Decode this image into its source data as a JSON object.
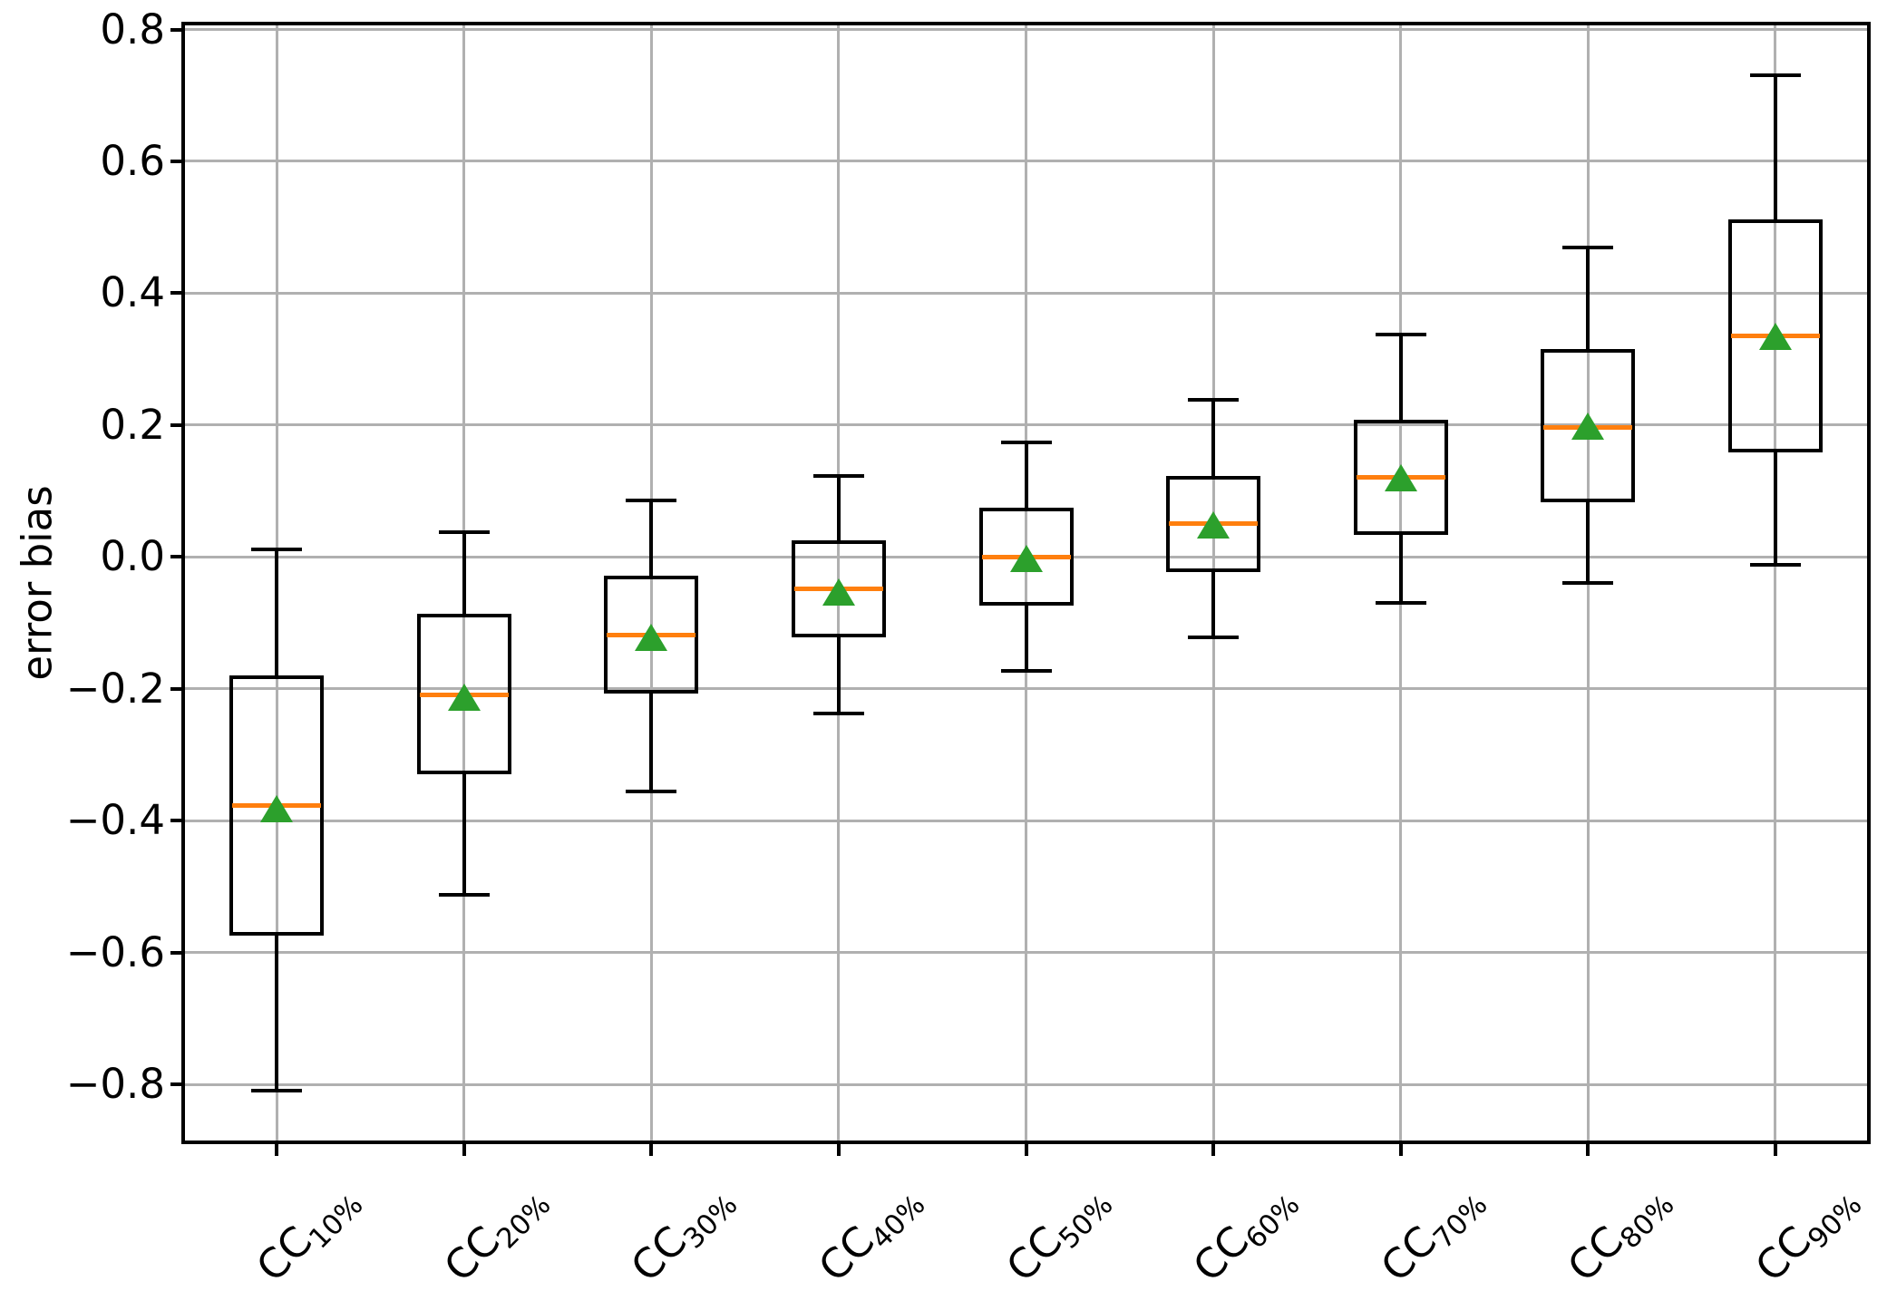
{
  "chart_data": {
    "type": "box",
    "title": "",
    "xlabel": "",
    "ylabel": "error bias",
    "grid": true,
    "legend": null,
    "outliers_shown": false,
    "mean_marker": "triangle-up",
    "categories": [
      "CC10%",
      "CC20%",
      "CC30%",
      "CC40%",
      "CC50%",
      "CC60%",
      "CC70%",
      "CC80%",
      "CC90%"
    ],
    "category_parts": [
      {
        "prefix": "CC",
        "sub": "10%"
      },
      {
        "prefix": "CC",
        "sub": "20%"
      },
      {
        "prefix": "CC",
        "sub": "30%"
      },
      {
        "prefix": "CC",
        "sub": "40%"
      },
      {
        "prefix": "CC",
        "sub": "50%"
      },
      {
        "prefix": "CC",
        "sub": "60%"
      },
      {
        "prefix": "CC",
        "sub": "70%"
      },
      {
        "prefix": "CC",
        "sub": "80%"
      },
      {
        "prefix": "CC",
        "sub": "90%"
      }
    ],
    "yticks": [
      0.8,
      0.6,
      0.4,
      0.2,
      0.0,
      -0.2,
      -0.4,
      -0.6,
      -0.8
    ],
    "ytick_labels": [
      "0.8",
      "0.6",
      "0.4",
      "0.2",
      "0.0",
      "−0.2",
      "−0.4",
      "−0.6",
      "−0.8"
    ],
    "ylim": [
      -0.888,
      0.809
    ],
    "series": [
      {
        "label": "CC10%",
        "whislo": -0.81,
        "q1": -0.575,
        "med": -0.377,
        "mean": -0.382,
        "q3": -0.18,
        "whishi": 0.011
      },
      {
        "label": "CC20%",
        "whislo": -0.512,
        "q1": -0.329,
        "med": -0.209,
        "mean": -0.213,
        "q3": -0.086,
        "whishi": 0.038
      },
      {
        "label": "CC30%",
        "whislo": -0.356,
        "q1": -0.207,
        "med": -0.118,
        "mean": -0.122,
        "q3": -0.028,
        "whishi": 0.085
      },
      {
        "label": "CC40%",
        "whislo": -0.238,
        "q1": -0.122,
        "med": -0.049,
        "mean": -0.053,
        "q3": 0.025,
        "whishi": 0.123
      },
      {
        "label": "CC50%",
        "whislo": -0.173,
        "q1": -0.074,
        "med": 0.0,
        "mean": -0.003,
        "q3": 0.075,
        "whishi": 0.174
      },
      {
        "label": "CC60%",
        "whislo": -0.122,
        "q1": -0.023,
        "med": 0.051,
        "mean": 0.049,
        "q3": 0.123,
        "whishi": 0.238
      },
      {
        "label": "CC70%",
        "whislo": -0.07,
        "q1": 0.034,
        "med": 0.121,
        "mean": 0.12,
        "q3": 0.208,
        "whishi": 0.337
      },
      {
        "label": "CC80%",
        "whislo": -0.04,
        "q1": 0.083,
        "med": 0.196,
        "mean": 0.198,
        "q3": 0.315,
        "whishi": 0.47
      },
      {
        "label": "CC90%",
        "whislo": -0.012,
        "q1": 0.158,
        "med": 0.335,
        "mean": 0.335,
        "q3": 0.512,
        "whishi": 0.73
      }
    ],
    "colors": {
      "median": "#ff7f0e",
      "mean": "#2ca02c",
      "box_line": "#000000",
      "grid": "#b0b0b0",
      "background": "#ffffff"
    }
  }
}
